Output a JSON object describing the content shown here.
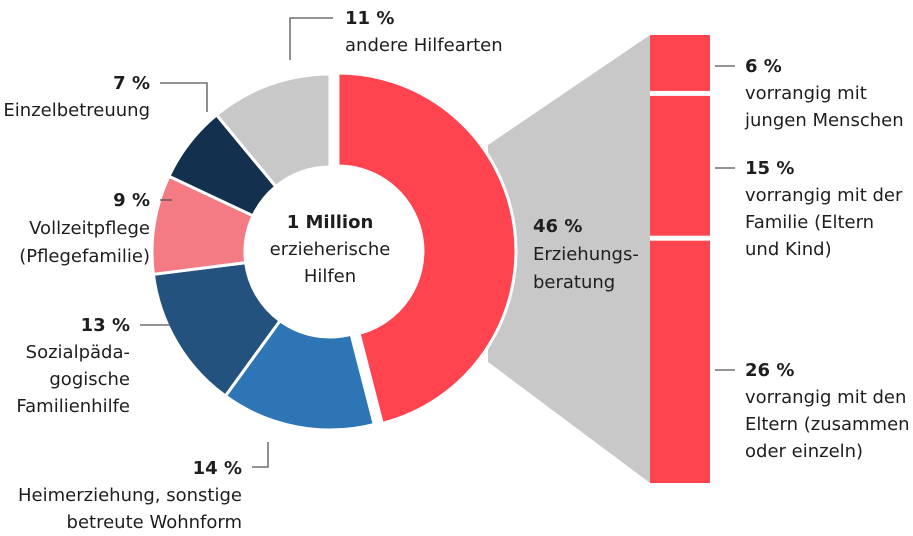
{
  "chart_data": [
    {
      "type": "donut",
      "center_text": [
        "1 Million",
        "erzieherische",
        "Hilfen"
      ],
      "categories": [
        [
          "Erziehungs-",
          "beratung"
        ],
        [
          "Heimerziehung, sonstige",
          "betreute Wohnform"
        ],
        [
          "Sozialpäda-",
          "gogische",
          "Familienhilfe"
        ],
        [
          "Vollzeitpflege",
          "(Pflegefamilie)"
        ],
        [
          "Einzelbetreuung"
        ],
        [
          "andere Hilfearten"
        ]
      ],
      "values": [
        46,
        14,
        13,
        9,
        7,
        11
      ],
      "value_labels": [
        "46 %",
        "14 %",
        "13 %",
        "9 %",
        "7 %",
        "11 %"
      ],
      "colors": [
        "#ff444f",
        "#2e75b6",
        "#24527f",
        "#f47a84",
        "#14304f",
        "#c8c8c8"
      ]
    },
    {
      "type": "stacked-bar",
      "categories": [
        [
          "vorrangig mit",
          "jungen Menschen"
        ],
        [
          "vorrangig mit der",
          "Familie (Eltern",
          "und Kind)"
        ],
        [
          "vorrangig mit den",
          "Eltern (zusammen",
          "oder einzeln)"
        ]
      ],
      "values": [
        6,
        15,
        26
      ],
      "value_labels": [
        "6 %",
        "15 %",
        "26 %"
      ],
      "color": "#ff444f"
    }
  ]
}
